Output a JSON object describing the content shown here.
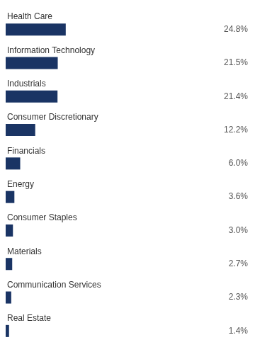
{
  "chart_data": {
    "type": "bar",
    "orientation": "horizontal",
    "categories": [
      "Health Care",
      "Information Technology",
      "Industrials",
      "Consumer Discretionary",
      "Financials",
      "Energy",
      "Consumer Staples",
      "Materials",
      "Communication Services",
      "Real Estate"
    ],
    "values": [
      24.8,
      21.5,
      21.4,
      12.2,
      6.0,
      3.6,
      3.0,
      2.7,
      2.3,
      1.4
    ],
    "value_labels": [
      "24.8%",
      "21.5%",
      "21.4%",
      "12.2%",
      "6.0%",
      "3.6%",
      "3.0%",
      "2.7%",
      "2.3%",
      "1.4%"
    ],
    "color": "#1a3464",
    "xlim": [
      0,
      100
    ],
    "tick_labels": false,
    "grid": false,
    "data_labels": true
  }
}
